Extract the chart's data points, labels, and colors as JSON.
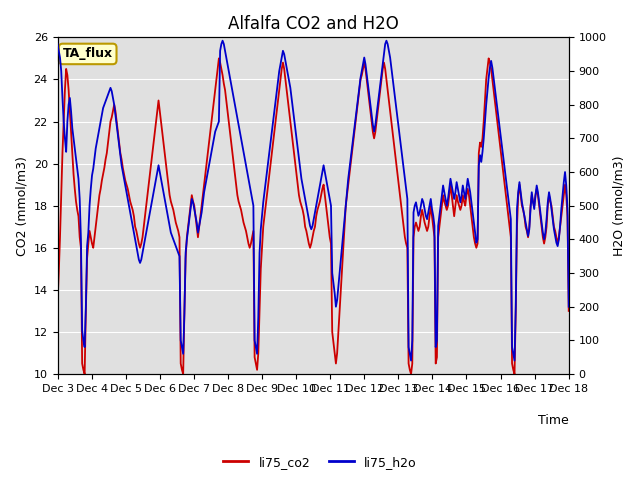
{
  "title": "Alfalfa CO2 and H2O",
  "xlabel": "Time",
  "ylabel_left": "CO2 (mmol/m3)",
  "ylabel_right": "H2O (mmol/m3)",
  "ylim_left": [
    10,
    26
  ],
  "ylim_right": [
    0,
    1000
  ],
  "yticks_left": [
    10,
    12,
    14,
    16,
    18,
    20,
    22,
    24,
    26
  ],
  "yticks_right": [
    0,
    100,
    200,
    300,
    400,
    500,
    600,
    700,
    800,
    900,
    1000
  ],
  "annotation_text": "TA_flux",
  "annotation_bg": "#ffffcc",
  "annotation_border": "#bb9900",
  "legend_labels": [
    "li75_co2",
    "li75_h2o"
  ],
  "line_color_co2": "#cc0000",
  "line_color_h2o": "#0000cc",
  "bg_color": "#e0e0e0",
  "fig_bg": "#ffffff",
  "grid_color": "#ffffff",
  "title_fontsize": 12,
  "axis_label_fontsize": 9,
  "tick_fontsize": 8,
  "legend_fontsize": 9,
  "line_width": 1.3,
  "xtick_labels": [
    "Dec 3",
    "Dec 4",
    "Dec 5",
    "Dec 6",
    "Dec 7",
    "Dec 8",
    "Dec 9",
    "Dec 10",
    "Dec 11",
    "Dec 12",
    "Dec 13",
    "Dec 14",
    "Dec 15",
    "Dec 16",
    "Dec 17",
    "Dec 18"
  ],
  "co2_data": [
    13.4,
    14.8,
    16.5,
    18.5,
    20.5,
    22.0,
    23.5,
    24.5,
    24.2,
    23.5,
    22.5,
    21.5,
    20.5,
    19.5,
    18.8,
    18.2,
    17.8,
    17.5,
    16.5,
    16.0,
    10.5,
    10.2,
    10.0,
    13.0,
    15.5,
    16.2,
    16.8,
    16.5,
    16.2,
    16.0,
    16.5,
    17.0,
    17.5,
    18.0,
    18.5,
    18.8,
    19.2,
    19.5,
    19.8,
    20.2,
    20.5,
    21.0,
    21.5,
    22.0,
    22.2,
    22.5,
    22.8,
    22.5,
    22.0,
    21.5,
    21.0,
    20.5,
    20.2,
    19.8,
    19.5,
    19.2,
    19.0,
    18.8,
    18.5,
    18.2,
    18.0,
    17.8,
    17.5,
    17.0,
    16.8,
    16.5,
    16.2,
    16.0,
    16.2,
    16.5,
    17.0,
    17.5,
    18.0,
    18.5,
    19.0,
    19.5,
    20.0,
    20.5,
    21.0,
    21.5,
    22.0,
    22.5,
    23.0,
    22.5,
    22.0,
    21.5,
    21.0,
    20.5,
    20.0,
    19.5,
    19.0,
    18.5,
    18.2,
    18.0,
    17.8,
    17.5,
    17.2,
    17.0,
    16.8,
    16.5,
    10.5,
    10.2,
    10.0,
    13.0,
    15.5,
    16.5,
    17.0,
    17.5,
    18.0,
    18.5,
    18.2,
    18.0,
    17.5,
    17.0,
    16.5,
    17.0,
    17.5,
    18.0,
    18.5,
    19.0,
    19.5,
    20.0,
    20.5,
    21.0,
    21.5,
    22.0,
    22.5,
    23.0,
    23.5,
    24.0,
    24.5,
    25.0,
    24.8,
    24.5,
    24.2,
    23.8,
    23.5,
    23.0,
    22.5,
    22.0,
    21.5,
    21.0,
    20.5,
    20.0,
    19.5,
    19.0,
    18.5,
    18.2,
    18.0,
    17.8,
    17.5,
    17.2,
    17.0,
    16.8,
    16.5,
    16.2,
    16.0,
    16.2,
    16.5,
    16.8,
    10.8,
    10.5,
    10.2,
    11.0,
    13.0,
    15.0,
    16.0,
    17.0,
    17.5,
    18.0,
    18.5,
    19.0,
    19.5,
    20.0,
    20.5,
    21.0,
    21.5,
    22.0,
    22.5,
    23.0,
    23.5,
    24.0,
    24.5,
    24.8,
    24.5,
    24.0,
    23.5,
    23.0,
    22.5,
    22.0,
    21.5,
    21.0,
    20.5,
    20.0,
    19.5,
    19.0,
    18.5,
    18.2,
    18.0,
    17.8,
    17.5,
    17.0,
    16.8,
    16.5,
    16.2,
    16.0,
    16.2,
    16.5,
    16.8,
    17.0,
    17.5,
    17.8,
    18.0,
    18.2,
    18.5,
    18.8,
    19.0,
    18.5,
    18.0,
    17.5,
    17.0,
    16.5,
    16.2,
    12.0,
    11.5,
    11.0,
    10.5,
    11.0,
    12.0,
    13.0,
    14.0,
    15.0,
    16.0,
    17.0,
    18.0,
    18.5,
    19.0,
    19.5,
    20.0,
    20.5,
    21.0,
    21.5,
    22.0,
    22.5,
    23.0,
    23.5,
    24.0,
    24.2,
    24.5,
    24.8,
    24.5,
    24.0,
    23.5,
    23.0,
    22.5,
    22.0,
    21.5,
    21.2,
    21.5,
    22.0,
    22.5,
    23.0,
    23.5,
    24.0,
    24.5,
    24.8,
    24.5,
    24.0,
    23.5,
    23.0,
    22.5,
    22.0,
    21.5,
    21.0,
    20.5,
    20.0,
    19.5,
    19.0,
    18.5,
    18.0,
    17.5,
    17.0,
    16.5,
    16.2,
    16.0,
    10.5,
    10.2,
    10.0,
    10.5,
    16.5,
    17.0,
    17.2,
    17.0,
    16.8,
    17.0,
    17.5,
    17.8,
    17.5,
    17.2,
    17.0,
    16.8,
    17.0,
    17.5,
    18.0,
    17.5,
    17.0,
    16.5,
    10.5,
    10.8,
    16.5,
    17.0,
    17.5,
    18.0,
    18.5,
    18.2,
    18.0,
    17.8,
    18.0,
    18.5,
    19.0,
    18.5,
    18.0,
    17.5,
    18.0,
    18.5,
    18.2,
    18.0,
    17.8,
    18.0,
    18.5,
    18.2,
    18.0,
    18.5,
    18.8,
    18.5,
    18.0,
    17.5,
    17.0,
    16.5,
    16.2,
    16.0,
    16.2,
    20.5,
    21.0,
    20.8,
    21.2,
    22.0,
    23.0,
    24.0,
    24.5,
    25.0,
    24.8,
    24.5,
    24.0,
    23.5,
    23.0,
    22.5,
    22.0,
    21.5,
    21.0,
    20.5,
    20.0,
    19.5,
    19.0,
    18.5,
    18.0,
    17.5,
    17.0,
    16.5,
    10.5,
    10.2,
    10.0,
    13.0,
    17.0,
    18.5,
    19.0,
    18.5,
    18.0,
    17.8,
    17.5,
    17.0,
    16.8,
    16.5,
    17.0,
    18.0,
    18.5,
    18.2,
    18.0,
    18.5,
    18.8,
    18.5,
    18.0,
    17.5,
    17.0,
    16.5,
    16.2,
    16.5,
    17.0,
    18.0,
    18.5,
    18.2,
    18.0,
    17.5,
    17.0,
    16.8,
    16.5,
    16.2,
    16.5,
    17.0,
    17.5,
    18.0,
    18.5,
    19.0,
    18.5,
    17.5,
    13.0
  ],
  "h2o_data": [
    980,
    960,
    940,
    900,
    820,
    750,
    700,
    660,
    750,
    800,
    820,
    780,
    730,
    700,
    670,
    640,
    610,
    580,
    520,
    400,
    130,
    100,
    80,
    200,
    380,
    420,
    500,
    550,
    590,
    610,
    640,
    670,
    690,
    710,
    730,
    750,
    770,
    790,
    800,
    810,
    820,
    830,
    840,
    850,
    840,
    820,
    800,
    770,
    740,
    710,
    680,
    650,
    620,
    600,
    580,
    560,
    540,
    520,
    500,
    480,
    460,
    440,
    420,
    400,
    380,
    360,
    340,
    330,
    340,
    360,
    380,
    400,
    420,
    440,
    460,
    480,
    500,
    520,
    540,
    560,
    580,
    600,
    620,
    600,
    580,
    560,
    540,
    520,
    500,
    480,
    460,
    440,
    420,
    410,
    400,
    390,
    380,
    370,
    360,
    350,
    100,
    80,
    60,
    180,
    360,
    400,
    430,
    460,
    490,
    520,
    510,
    490,
    470,
    450,
    420,
    440,
    460,
    480,
    510,
    540,
    560,
    580,
    600,
    620,
    640,
    660,
    680,
    700,
    720,
    730,
    740,
    750,
    960,
    980,
    990,
    980,
    960,
    940,
    920,
    900,
    880,
    860,
    840,
    820,
    800,
    780,
    760,
    740,
    720,
    700,
    680,
    660,
    640,
    620,
    600,
    580,
    560,
    540,
    520,
    500,
    100,
    80,
    60,
    170,
    360,
    430,
    470,
    510,
    540,
    570,
    600,
    630,
    660,
    690,
    720,
    750,
    780,
    810,
    840,
    870,
    900,
    920,
    940,
    960,
    950,
    930,
    910,
    890,
    870,
    850,
    820,
    790,
    760,
    730,
    700,
    670,
    640,
    610,
    580,
    560,
    540,
    520,
    500,
    480,
    460,
    440,
    430,
    440,
    460,
    480,
    500,
    520,
    540,
    560,
    580,
    600,
    620,
    600,
    580,
    560,
    540,
    520,
    500,
    300,
    270,
    240,
    200,
    220,
    260,
    300,
    340,
    380,
    420,
    460,
    500,
    540,
    580,
    610,
    640,
    670,
    700,
    730,
    760,
    790,
    820,
    850,
    880,
    900,
    920,
    940,
    920,
    890,
    860,
    830,
    800,
    770,
    740,
    720,
    740,
    770,
    800,
    830,
    860,
    890,
    920,
    950,
    980,
    990,
    980,
    960,
    940,
    910,
    880,
    850,
    820,
    790,
    760,
    730,
    700,
    670,
    640,
    610,
    580,
    550,
    520,
    80,
    60,
    40,
    100,
    480,
    500,
    510,
    490,
    470,
    480,
    500,
    520,
    510,
    490,
    470,
    460,
    480,
    500,
    520,
    490,
    470,
    440,
    80,
    100,
    440,
    470,
    500,
    530,
    560,
    540,
    520,
    500,
    520,
    550,
    580,
    560,
    540,
    520,
    540,
    570,
    550,
    530,
    510,
    530,
    560,
    540,
    520,
    550,
    580,
    560,
    540,
    510,
    480,
    450,
    420,
    390,
    400,
    620,
    650,
    630,
    660,
    700,
    750,
    800,
    840,
    880,
    910,
    930,
    910,
    880,
    850,
    820,
    790,
    760,
    730,
    700,
    670,
    640,
    610,
    580,
    550,
    520,
    490,
    460,
    80,
    60,
    40,
    200,
    490,
    540,
    570,
    540,
    510,
    490,
    470,
    450,
    430,
    410,
    430,
    490,
    540,
    510,
    490,
    530,
    560,
    540,
    510,
    480,
    450,
    420,
    400,
    420,
    460,
    510,
    540,
    520,
    490,
    460,
    430,
    410,
    390,
    380,
    400,
    440,
    490,
    530,
    570,
    600,
    560,
    490,
    200
  ]
}
